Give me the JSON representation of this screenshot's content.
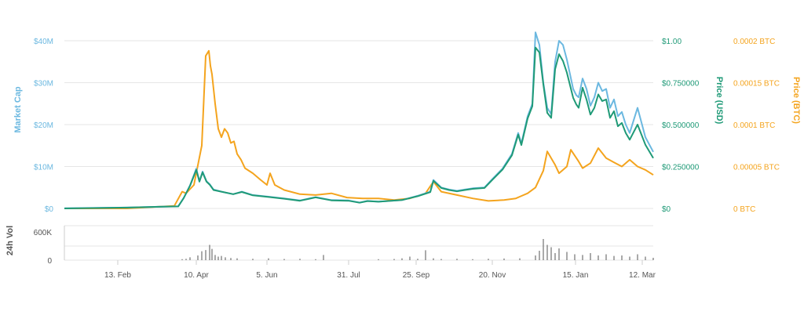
{
  "chart_data": {
    "type": "line",
    "colors": {
      "market_cap": "#6bb8e0",
      "price_usd": "#1f9a77",
      "price_btc": "#f4a41e",
      "volume": "#555555",
      "grid": "#e6e6e6"
    },
    "axes": {
      "market_cap": {
        "label": "Market Cap",
        "ticks": [
          "$0",
          "$10M",
          "$20M",
          "$30M",
          "$40M"
        ],
        "range": [
          0,
          40000000
        ]
      },
      "price_usd": {
        "label": "Price (USD)",
        "ticks": [
          "$0",
          "$0.250000",
          "$0.500000",
          "$0.750000",
          "$1.00"
        ],
        "range": [
          0,
          1.0
        ]
      },
      "price_btc": {
        "label": "Price (BTC)",
        "ticks": [
          "0 BTC",
          "0.00005 BTC",
          "0.0001 BTC",
          "0.00015 BTC",
          "0.0002 BTC"
        ],
        "range": [
          0,
          0.0002
        ]
      },
      "volume": {
        "label": "24h Vol",
        "ticks": [
          "0",
          "600K"
        ],
        "range": [
          0,
          1200000
        ]
      },
      "x": {
        "ticks": [
          "13. Feb",
          "10. Apr",
          "5. Jun",
          "31. Jul",
          "25. Sep",
          "20. Nov",
          "15. Jan",
          "12. Mar"
        ]
      }
    },
    "series": [
      {
        "key": "market_cap",
        "x": [
          0,
          80,
          120,
          145,
          152,
          160,
          168,
          172,
          176,
          181,
          185,
          190,
          200,
          215,
          226,
          240,
          260,
          280,
          300,
          312,
          320,
          340,
          362,
          376,
          386,
          400,
          430,
          450,
          466,
          470,
          480,
          490,
          500,
          510,
          520,
          535,
          545,
          558,
          570,
          578,
          582,
          590,
          596,
          600,
          605,
          610,
          615,
          620,
          625,
          630,
          635,
          640,
          648,
          652,
          655,
          660,
          665,
          670,
          675,
          680,
          685,
          690,
          695,
          700,
          705,
          710,
          715,
          720,
          730,
          740,
          750
        ],
        "values": [
          0.05,
          0.2,
          0.4,
          0.5,
          2.5,
          5.5,
          9.5,
          6.5,
          8.8,
          6.5,
          5.8,
          4.5,
          4.0,
          3.4,
          4.0,
          3.2,
          2.8,
          2.4,
          1.9,
          2.4,
          2.7,
          2.0,
          1.9,
          1.4,
          1.8,
          1.6,
          2.0,
          3.0,
          4.0,
          6.8,
          5.0,
          4.5,
          4.2,
          4.5,
          4.8,
          5.0,
          7.0,
          9.5,
          13.0,
          18.0,
          15.5,
          22.0,
          25.0,
          42.0,
          39.0,
          30.0,
          24.0,
          22.5,
          35.0,
          40.0,
          39.0,
          35.5,
          28.5,
          27.0,
          26.5,
          31.0,
          28.5,
          24.5,
          26.5,
          30.0,
          28.0,
          28.5,
          24.0,
          26.0,
          22.0,
          23.0,
          20.0,
          18.0,
          24.0,
          17.0,
          13.5
        ]
      },
      {
        "key": "price_usd",
        "x": [
          0,
          80,
          120,
          145,
          152,
          160,
          168,
          172,
          176,
          181,
          185,
          190,
          200,
          215,
          226,
          240,
          260,
          280,
          300,
          312,
          320,
          340,
          362,
          376,
          386,
          400,
          430,
          450,
          466,
          470,
          480,
          490,
          500,
          510,
          520,
          535,
          545,
          558,
          570,
          578,
          582,
          590,
          596,
          600,
          605,
          610,
          615,
          620,
          625,
          630,
          635,
          640,
          648,
          652,
          655,
          660,
          665,
          670,
          675,
          680,
          685,
          690,
          695,
          700,
          705,
          710,
          715,
          720,
          730,
          740,
          750
        ],
        "values": [
          0.0,
          0.005,
          0.01,
          0.012,
          0.062,
          0.135,
          0.23,
          0.16,
          0.215,
          0.16,
          0.142,
          0.11,
          0.1,
          0.085,
          0.098,
          0.078,
          0.068,
          0.058,
          0.046,
          0.058,
          0.066,
          0.048,
          0.046,
          0.034,
          0.044,
          0.04,
          0.05,
          0.073,
          0.097,
          0.165,
          0.122,
          0.11,
          0.102,
          0.11,
          0.117,
          0.122,
          0.17,
          0.232,
          0.317,
          0.44,
          0.378,
          0.537,
          0.61,
          0.96,
          0.93,
          0.74,
          0.57,
          0.54,
          0.83,
          0.92,
          0.88,
          0.81,
          0.66,
          0.62,
          0.6,
          0.72,
          0.65,
          0.56,
          0.6,
          0.68,
          0.64,
          0.65,
          0.54,
          0.58,
          0.49,
          0.51,
          0.45,
          0.41,
          0.5,
          0.38,
          0.3
        ]
      },
      {
        "key": "price_btc",
        "x": [
          0,
          80,
          140,
          150,
          155,
          165,
          175,
          180,
          184,
          186,
          188,
          192,
          196,
          200,
          204,
          208,
          212,
          216,
          220,
          225,
          230,
          240,
          250,
          258,
          262,
          268,
          280,
          300,
          320,
          340,
          360,
          380,
          400,
          420,
          440,
          460,
          470,
          480,
          500,
          520,
          540,
          560,
          575,
          580,
          590,
          600,
          610,
          615,
          625,
          630,
          640,
          645,
          655,
          660,
          670,
          680,
          690,
          700,
          710,
          720,
          730,
          740,
          750
        ],
        "values": [
          0.0,
          0.0,
          3e-06,
          2e-05,
          1.8e-05,
          2.8e-05,
          7.5e-05,
          0.000182,
          0.000188,
          0.00017,
          0.00016,
          0.000125,
          9.5e-05,
          8.5e-05,
          9.5e-05,
          9e-05,
          7.8e-05,
          8e-05,
          6.5e-05,
          5.8e-05,
          4.8e-05,
          4.2e-05,
          3.4e-05,
          2.8e-05,
          4.2e-05,
          2.8e-05,
          2.2e-05,
          1.7e-05,
          1.6e-05,
          1.8e-05,
          1.3e-05,
          1.2e-05,
          1.2e-05,
          1e-05,
          1.2e-05,
          1.8e-05,
          3.2e-05,
          2e-05,
          1.6e-05,
          1.2e-05,
          9e-06,
          1e-05,
          1.2e-05,
          1.4e-05,
          1.8e-05,
          2.5e-05,
          4.5e-05,
          6.8e-05,
          5.2e-05,
          4.2e-05,
          5e-05,
          7e-05,
          5.6e-05,
          4.8e-05,
          5.4e-05,
          7.2e-05,
          6e-05,
          5.5e-05,
          5e-05,
          5.8e-05,
          5e-05,
          4.6e-05,
          4e-05
        ]
      },
      {
        "key": "volume",
        "x": [
          150,
          155,
          160,
          170,
          175,
          180,
          185,
          188,
          192,
          196,
          200,
          205,
          212,
          220,
          240,
          260,
          280,
          300,
          320,
          330,
          400,
          420,
          430,
          440,
          450,
          460,
          470,
          480,
          500,
          520,
          540,
          560,
          580,
          600,
          605,
          610,
          615,
          620,
          625,
          630,
          640,
          650,
          660,
          670,
          680,
          690,
          700,
          710,
          720,
          730,
          740,
          750
        ],
        "values": [
          40000,
          60000,
          120000,
          200000,
          380000,
          430000,
          650000,
          480000,
          220000,
          150000,
          180000,
          120000,
          90000,
          80000,
          60000,
          80000,
          50000,
          60000,
          40000,
          220000,
          40000,
          50000,
          80000,
          150000,
          60000,
          420000,
          80000,
          50000,
          60000,
          40000,
          60000,
          70000,
          80000,
          200000,
          400000,
          900000,
          650000,
          550000,
          300000,
          500000,
          350000,
          250000,
          220000,
          300000,
          200000,
          250000,
          180000,
          200000,
          150000,
          250000,
          150000,
          100000
        ]
      }
    ]
  }
}
